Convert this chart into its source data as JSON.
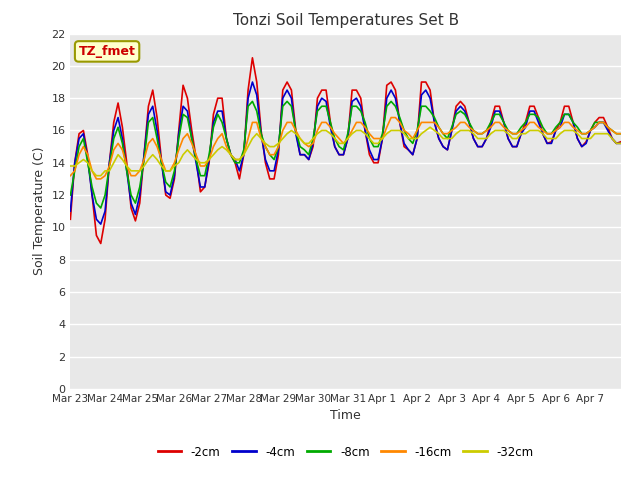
{
  "title": "Tonzi Soil Temperatures Set B",
  "xlabel": "Time",
  "ylabel": "Soil Temperature (C)",
  "ylim": [
    0,
    22
  ],
  "yticks": [
    0,
    2,
    4,
    6,
    8,
    10,
    12,
    14,
    16,
    18,
    20,
    22
  ],
  "annotation_text": "TZ_fmet",
  "annotation_box_color": "#ffffcc",
  "annotation_border_color": "#999900",
  "annotation_text_color": "#cc0000",
  "fig_bg_color": "#ffffff",
  "plot_bg_color": "#e8e8e8",
  "grid_color": "#ffffff",
  "series": {
    "neg2cm": {
      "label": "-2cm",
      "color": "#dd0000",
      "linewidth": 1.2
    },
    "neg4cm": {
      "label": "-4cm",
      "color": "#0000cc",
      "linewidth": 1.2
    },
    "neg8cm": {
      "label": "-8cm",
      "color": "#00aa00",
      "linewidth": 1.2
    },
    "neg16cm": {
      "label": "-16cm",
      "color": "#ff8800",
      "linewidth": 1.2
    },
    "neg32cm": {
      "label": "-32cm",
      "color": "#cccc00",
      "linewidth": 1.2
    }
  },
  "neg2cm_data": [
    10.5,
    14.0,
    15.8,
    16.0,
    14.5,
    12.0,
    9.5,
    9.0,
    10.5,
    14.0,
    16.5,
    17.7,
    16.2,
    14.0,
    11.2,
    10.4,
    11.5,
    14.5,
    17.5,
    18.5,
    16.8,
    14.2,
    12.0,
    11.8,
    13.0,
    16.0,
    18.8,
    18.0,
    16.0,
    14.3,
    12.2,
    12.5,
    14.0,
    17.0,
    18.0,
    18.0,
    15.5,
    14.5,
    14.0,
    13.0,
    14.5,
    18.5,
    20.5,
    19.0,
    16.0,
    14.0,
    13.0,
    13.0,
    14.5,
    18.5,
    19.0,
    18.5,
    16.0,
    14.5,
    14.5,
    14.2,
    15.0,
    18.0,
    18.5,
    18.5,
    16.5,
    15.0,
    14.5,
    14.5,
    15.5,
    18.5,
    18.5,
    18.0,
    16.0,
    14.5,
    14.0,
    14.0,
    15.5,
    18.8,
    19.0,
    18.5,
    16.5,
    15.0,
    14.8,
    14.5,
    15.5,
    19.0,
    19.0,
    18.5,
    16.5,
    15.5,
    15.0,
    14.8,
    16.0,
    17.5,
    17.8,
    17.5,
    16.5,
    15.5,
    15.0,
    15.0,
    15.5,
    16.5,
    17.5,
    17.5,
    16.5,
    15.5,
    15.0,
    15.0,
    15.8,
    16.5,
    17.5,
    17.5,
    16.8,
    15.8,
    15.2,
    15.3,
    16.0,
    16.5,
    17.5,
    17.5,
    16.5,
    15.5,
    15.0,
    15.3,
    16.0,
    16.5,
    16.8,
    16.8,
    16.2,
    15.5,
    15.2,
    15.3
  ],
  "neg4cm_data": [
    11.0,
    14.0,
    15.5,
    15.8,
    14.2,
    12.0,
    10.5,
    10.2,
    11.0,
    14.0,
    16.0,
    16.8,
    15.5,
    13.5,
    11.5,
    10.8,
    12.0,
    14.5,
    17.0,
    17.5,
    16.0,
    14.0,
    12.2,
    12.0,
    13.2,
    15.8,
    17.5,
    17.2,
    15.5,
    14.0,
    12.5,
    12.5,
    14.2,
    16.5,
    17.2,
    17.2,
    15.5,
    14.5,
    14.2,
    13.5,
    14.5,
    18.0,
    19.0,
    18.2,
    15.8,
    14.2,
    13.5,
    13.5,
    14.8,
    18.0,
    18.5,
    18.0,
    15.8,
    14.5,
    14.5,
    14.2,
    15.2,
    17.5,
    18.0,
    17.8,
    16.2,
    15.0,
    14.5,
    14.5,
    15.5,
    17.8,
    18.0,
    17.5,
    16.0,
    14.8,
    14.2,
    14.2,
    15.5,
    18.0,
    18.5,
    18.0,
    16.5,
    15.2,
    14.8,
    14.5,
    15.5,
    18.2,
    18.5,
    18.0,
    16.5,
    15.5,
    15.0,
    14.8,
    16.0,
    17.2,
    17.5,
    17.2,
    16.5,
    15.5,
    15.0,
    15.0,
    15.5,
    16.2,
    17.2,
    17.2,
    16.5,
    15.5,
    15.0,
    15.0,
    15.8,
    16.2,
    17.2,
    17.2,
    16.5,
    15.8,
    15.2,
    15.2,
    16.0,
    16.2,
    17.0,
    17.0,
    16.5,
    15.5,
    15.0,
    15.2,
    16.0,
    16.2,
    16.5,
    16.5,
    16.0,
    15.5,
    15.2,
    15.2
  ],
  "neg8cm_data": [
    12.0,
    13.5,
    15.0,
    15.5,
    14.0,
    12.5,
    11.5,
    11.2,
    12.0,
    13.8,
    15.5,
    16.2,
    15.2,
    13.5,
    12.0,
    11.5,
    12.5,
    14.2,
    16.5,
    16.8,
    15.5,
    14.0,
    12.8,
    12.5,
    13.5,
    15.5,
    17.0,
    16.8,
    15.5,
    14.2,
    13.2,
    13.2,
    14.5,
    16.2,
    17.0,
    16.5,
    15.5,
    14.5,
    14.0,
    14.0,
    14.8,
    17.5,
    17.8,
    17.2,
    15.8,
    15.0,
    14.5,
    14.2,
    15.0,
    17.5,
    17.8,
    17.5,
    16.0,
    15.0,
    14.8,
    14.5,
    15.5,
    17.2,
    17.5,
    17.5,
    16.5,
    15.5,
    15.0,
    14.8,
    15.8,
    17.5,
    17.5,
    17.2,
    16.5,
    15.5,
    15.0,
    15.0,
    15.8,
    17.5,
    17.8,
    17.5,
    16.8,
    16.0,
    15.5,
    15.2,
    16.0,
    17.5,
    17.5,
    17.2,
    16.8,
    16.2,
    15.8,
    15.5,
    16.2,
    17.0,
    17.2,
    17.0,
    16.5,
    16.0,
    15.8,
    15.8,
    16.0,
    16.5,
    17.0,
    17.0,
    16.5,
    16.0,
    15.8,
    15.8,
    16.2,
    16.5,
    17.0,
    17.0,
    16.8,
    16.2,
    15.8,
    15.8,
    16.2,
    16.5,
    17.0,
    17.0,
    16.5,
    16.2,
    15.8,
    15.8,
    16.0,
    16.5,
    16.5,
    16.5,
    16.2,
    16.0,
    15.8,
    15.8
  ],
  "neg16cm_data": [
    13.2,
    13.5,
    14.5,
    15.0,
    14.5,
    13.5,
    13.0,
    13.0,
    13.2,
    13.8,
    14.8,
    15.2,
    14.8,
    13.8,
    13.2,
    13.2,
    13.5,
    14.2,
    15.2,
    15.5,
    15.0,
    14.2,
    13.5,
    13.5,
    14.0,
    14.8,
    15.5,
    15.8,
    15.2,
    14.5,
    13.8,
    13.8,
    14.2,
    15.0,
    15.5,
    15.8,
    15.0,
    14.5,
    14.2,
    14.2,
    14.5,
    15.5,
    16.5,
    16.5,
    15.5,
    15.0,
    14.5,
    14.5,
    15.0,
    16.0,
    16.5,
    16.5,
    16.0,
    15.5,
    15.2,
    15.0,
    15.2,
    16.0,
    16.5,
    16.5,
    16.2,
    15.8,
    15.5,
    15.2,
    15.5,
    16.0,
    16.5,
    16.5,
    16.2,
    15.8,
    15.5,
    15.5,
    15.5,
    16.2,
    16.8,
    16.8,
    16.5,
    16.0,
    15.8,
    15.5,
    16.0,
    16.5,
    16.5,
    16.5,
    16.5,
    16.2,
    15.8,
    15.8,
    16.0,
    16.2,
    16.5,
    16.5,
    16.2,
    16.0,
    15.8,
    15.8,
    16.0,
    16.2,
    16.5,
    16.5,
    16.2,
    16.0,
    15.8,
    15.8,
    16.0,
    16.2,
    16.5,
    16.5,
    16.2,
    16.0,
    15.8,
    15.8,
    16.0,
    16.2,
    16.5,
    16.5,
    16.2,
    16.0,
    15.8,
    15.8,
    16.0,
    16.2,
    16.5,
    16.5,
    16.2,
    16.0,
    15.8,
    15.8
  ],
  "neg32cm_data": [
    13.8,
    13.8,
    14.0,
    14.2,
    14.0,
    13.5,
    13.2,
    13.2,
    13.5,
    13.5,
    14.0,
    14.5,
    14.2,
    13.8,
    13.5,
    13.5,
    13.5,
    13.8,
    14.2,
    14.5,
    14.2,
    13.8,
    13.5,
    13.5,
    13.8,
    14.0,
    14.5,
    14.8,
    14.5,
    14.2,
    14.0,
    14.0,
    14.2,
    14.5,
    14.8,
    15.0,
    14.8,
    14.5,
    14.2,
    14.2,
    14.5,
    15.0,
    15.5,
    15.8,
    15.5,
    15.2,
    15.0,
    15.0,
    15.2,
    15.5,
    15.8,
    16.0,
    15.8,
    15.5,
    15.2,
    15.2,
    15.5,
    15.8,
    16.0,
    16.0,
    15.8,
    15.5,
    15.2,
    15.2,
    15.5,
    15.8,
    16.0,
    16.0,
    15.8,
    15.5,
    15.2,
    15.2,
    15.5,
    15.8,
    16.0,
    16.0,
    16.0,
    15.8,
    15.5,
    15.5,
    15.5,
    15.8,
    16.0,
    16.2,
    16.0,
    15.8,
    15.5,
    15.5,
    15.5,
    15.8,
    16.0,
    16.0,
    16.0,
    15.8,
    15.5,
    15.5,
    15.5,
    15.8,
    16.0,
    16.0,
    16.0,
    15.8,
    15.5,
    15.5,
    15.8,
    15.8,
    16.0,
    16.0,
    16.0,
    15.8,
    15.5,
    15.5,
    15.5,
    15.8,
    16.0,
    16.0,
    16.0,
    15.8,
    15.5,
    15.5,
    15.5,
    15.8,
    15.8,
    15.8,
    15.8,
    15.5,
    15.2,
    15.2
  ],
  "xtick_labels": [
    "Mar 23",
    "Mar 24",
    "Mar 25",
    "Mar 26",
    "Mar 27",
    "Mar 28",
    "Mar 29",
    "Mar 30",
    "Mar 31",
    "Apr 1",
    "Apr 2",
    "Apr 3",
    "Apr 4",
    "Apr 5",
    "Apr 6",
    "Apr 7"
  ],
  "xtick_positions": [
    0,
    8,
    16,
    24,
    32,
    40,
    48,
    56,
    64,
    72,
    80,
    88,
    96,
    104,
    112,
    120
  ]
}
